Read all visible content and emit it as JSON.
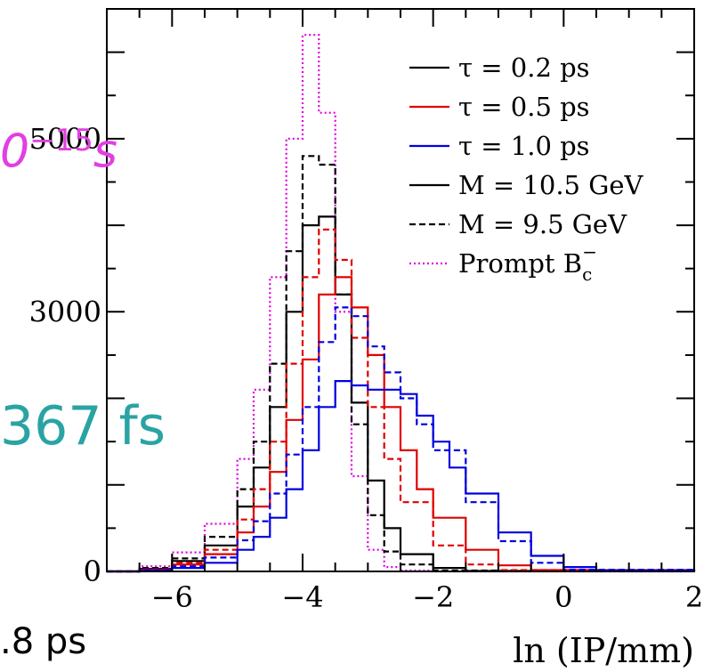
{
  "chart_data": {
    "type": "line",
    "title": "",
    "xlabel": "ln (IP/mm)",
    "ylabel": "",
    "xlim": [
      -7,
      2
    ],
    "ylim": [
      0,
      6500
    ],
    "x_ticks": [
      -6,
      -4,
      -2,
      0,
      2
    ],
    "x_tick_labels": [
      "−6",
      "−4",
      "−2",
      "0",
      "2"
    ],
    "y_ticks": [
      0,
      3000,
      5000
    ],
    "y_tick_labels": [
      "0",
      "3000",
      "5000"
    ],
    "legend_position": "top-right",
    "legend": [
      {
        "label": "τ = 0.2 ps",
        "color": "#000000",
        "style": "solid"
      },
      {
        "label": "τ = 0.5 ps",
        "color": "#e00000",
        "style": "solid"
      },
      {
        "label": "τ = 1.0 ps",
        "color": "#0000e0",
        "style": "solid"
      },
      {
        "label": "M = 10.5 GeV",
        "color": "#000000",
        "style": "solid"
      },
      {
        "label": "M = 9.5 GeV",
        "color": "#000000",
        "style": "dashed"
      },
      {
        "label": "Prompt B",
        "label_sub": "c",
        "label_sup": "−",
        "color": "#e000e0",
        "style": "dotted"
      }
    ],
    "series": [
      {
        "color": "#e000e0",
        "style": "dotted",
        "x": [
          -7.0,
          -6.5,
          -6.0,
          -5.5,
          -5.0,
          -4.75,
          -4.5,
          -4.25,
          -4.0,
          -3.75,
          -3.5,
          -3.25,
          -3.0,
          -2.75,
          -2.5,
          -2.0,
          2.0
        ],
        "y": [
          0,
          60,
          220,
          550,
          1300,
          2100,
          3400,
          5000,
          6200,
          5300,
          3000,
          1100,
          250,
          50,
          10,
          0,
          0
        ]
      },
      {
        "color": "#000000",
        "style": "dashed",
        "x": [
          -7.0,
          -6.5,
          -6.0,
          -5.5,
          -5.0,
          -4.75,
          -4.5,
          -4.25,
          -4.0,
          -3.75,
          -3.5,
          -3.25,
          -3.0,
          -2.75,
          -2.5,
          -2.0,
          2.0
        ],
        "y": [
          0,
          40,
          150,
          400,
          950,
          1500,
          2400,
          3700,
          4800,
          4700,
          3200,
          1700,
          650,
          230,
          80,
          10,
          0
        ]
      },
      {
        "color": "#000000",
        "style": "solid",
        "x": [
          -7.0,
          -6.5,
          -6.0,
          -5.5,
          -5.0,
          -4.75,
          -4.5,
          -4.25,
          -4.0,
          -3.75,
          -3.5,
          -3.25,
          -3.0,
          -2.75,
          -2.5,
          -2.0,
          -1.5,
          2.0
        ],
        "y": [
          0,
          30,
          120,
          300,
          750,
          1200,
          1900,
          3000,
          4000,
          4100,
          3200,
          1950,
          1050,
          500,
          200,
          40,
          5,
          0
        ]
      },
      {
        "color": "#e00000",
        "style": "dashed",
        "x": [
          -7.0,
          -6.5,
          -6.0,
          -5.5,
          -5.0,
          -4.75,
          -4.5,
          -4.25,
          -4.0,
          -3.75,
          -3.5,
          -3.25,
          -3.0,
          -2.75,
          -2.5,
          -2.0,
          -1.5,
          -1.0,
          2.0
        ],
        "y": [
          0,
          25,
          100,
          250,
          600,
          950,
          1500,
          2400,
          3400,
          3950,
          3600,
          2700,
          1900,
          1300,
          800,
          300,
          80,
          15,
          0
        ]
      },
      {
        "color": "#e00000",
        "style": "solid",
        "x": [
          -7.0,
          -6.5,
          -6.0,
          -5.5,
          -5.0,
          -4.75,
          -4.5,
          -4.25,
          -4.0,
          -3.75,
          -3.5,
          -3.25,
          -3.0,
          -2.75,
          -2.5,
          -2.25,
          -2.0,
          -1.5,
          -1.0,
          -0.5,
          2.0
        ],
        "y": [
          0,
          20,
          80,
          200,
          450,
          750,
          1150,
          1750,
          2450,
          3200,
          3400,
          3050,
          2500,
          1900,
          1400,
          950,
          620,
          250,
          70,
          15,
          0
        ]
      },
      {
        "color": "#0000e0",
        "style": "dashed",
        "x": [
          -7.0,
          -6.5,
          -6.0,
          -5.5,
          -5.0,
          -4.75,
          -4.5,
          -4.25,
          -4.0,
          -3.75,
          -3.5,
          -3.25,
          -3.0,
          -2.75,
          -2.5,
          -2.25,
          -2.0,
          -1.5,
          -1.0,
          -0.5,
          0.0,
          2.0
        ],
        "y": [
          0,
          15,
          60,
          160,
          360,
          580,
          900,
          1350,
          1900,
          2650,
          3050,
          2950,
          2600,
          2300,
          2000,
          1700,
          1400,
          800,
          350,
          100,
          20,
          0
        ]
      },
      {
        "color": "#0000e0",
        "style": "solid",
        "x": [
          -7.0,
          -6.5,
          -6.0,
          -5.5,
          -5.0,
          -4.75,
          -4.5,
          -4.25,
          -4.0,
          -3.75,
          -3.5,
          -3.25,
          -3.0,
          -2.75,
          -2.5,
          -2.25,
          -2.0,
          -1.75,
          -1.5,
          -1.0,
          -0.5,
          0.0,
          0.5,
          2.0
        ],
        "y": [
          0,
          10,
          40,
          100,
          250,
          400,
          620,
          950,
          1400,
          1900,
          2200,
          2150,
          2100,
          2100,
          2050,
          1800,
          1500,
          1200,
          900,
          450,
          180,
          50,
          10,
          0
        ]
      }
    ]
  },
  "overlays": {
    "magenta_text": "0",
    "magenta_exp": "−15",
    "magenta_unit": "s",
    "teal_text": "367 fs",
    "bottom_text": ".8 ps"
  }
}
